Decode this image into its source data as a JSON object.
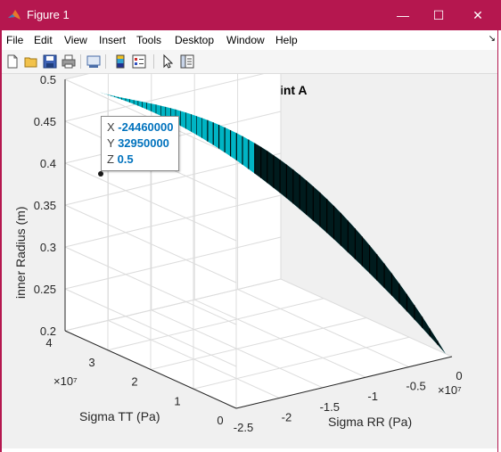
{
  "window": {
    "title": "Figure 1",
    "minimize_glyph": "—",
    "maximize_glyph": "☐",
    "close_glyph": "✕"
  },
  "menu": {
    "items": [
      "File",
      "Edit",
      "View",
      "Insert",
      "Tools",
      "Desktop",
      "Window",
      "Help"
    ],
    "dock_glyph": "↘"
  },
  "toolbar": {
    "icons": [
      "new-figure-icon",
      "open-file-icon",
      "save-icon",
      "print-icon",
      "link-plot-icon",
      "insert-colorbar-icon",
      "insert-legend-icon",
      "edit-plot-icon",
      "property-inspector-icon"
    ]
  },
  "chart_data": {
    "type": "surface",
    "title": "Stresses at Point A",
    "xlabel": "Sigma RR (Pa)",
    "ylabel": "Sigma TT (Pa)",
    "zlabel": "inner Radius (m)",
    "x_ticks": [
      "-2.5",
      "-2",
      "-1.5",
      "-1",
      "-0.5",
      "0"
    ],
    "x_exponent": "×10⁷",
    "y_ticks": [
      "0",
      "1",
      "2",
      "3",
      "4"
    ],
    "y_exponent": "×10⁷",
    "z_ticks": [
      "0.2",
      "0.25",
      "0.3",
      "0.35",
      "0.4",
      "0.45",
      "0.5"
    ],
    "xlim": [
      -25000000,
      0
    ],
    "ylim": [
      0,
      40000000
    ],
    "zlim": [
      0.2,
      0.5
    ],
    "grid": true,
    "surface_color": "#00b4c4",
    "edge_color": "#000000",
    "datatip": {
      "x_label": "X",
      "x_value": "-24460000",
      "y_label": "Y",
      "y_value": "32950000",
      "z_label": "Z",
      "z_value": "0.5"
    }
  }
}
